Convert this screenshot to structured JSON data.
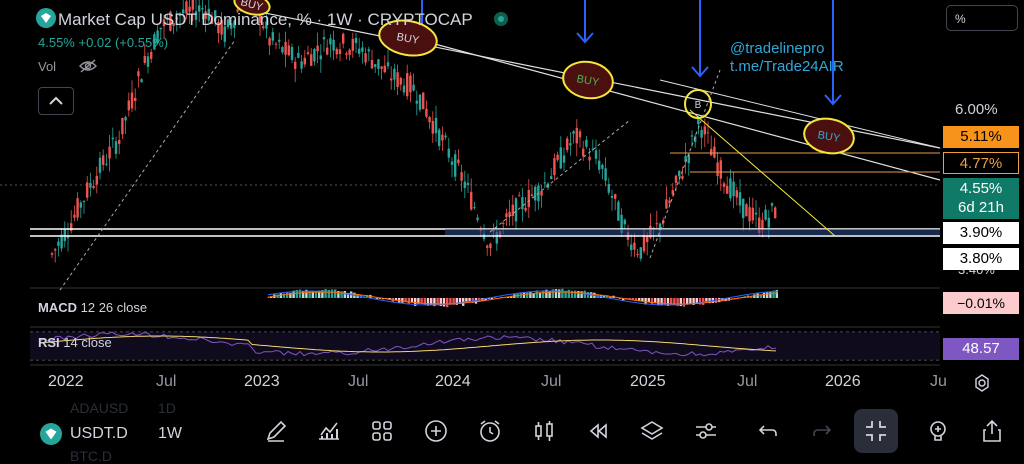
{
  "header": {
    "title": "Market Cap USDT Dominance, % · 1W · CRYPTOCAP",
    "price_line": "4.55% +0.02 (+0.55%)",
    "vol_label": "Vol"
  },
  "scale_button": "%",
  "watermark": {
    "line1": "@tradelinepro",
    "line2": "t.me/Trade24AIR"
  },
  "annotations": {
    "buy": "BUY",
    "b": "B"
  },
  "price_axis": {
    "top_label": "6.00%",
    "hidden_label": "3.40%"
  },
  "price_tags": [
    {
      "label": "5.11%",
      "bg": "#f7931a",
      "fg": "#000000"
    },
    {
      "label": "4.77%",
      "bg": "#000000",
      "fg": "#f0a040"
    },
    {
      "label": "4.55%",
      "bg": "#0f7a68",
      "fg": "#ffffff"
    },
    {
      "label": "6d 21h",
      "bg": "#0f7a68",
      "fg": "#ffffff"
    },
    {
      "label": "3.90%",
      "bg": "#ffffff",
      "fg": "#000000"
    },
    {
      "label": "3.80%",
      "bg": "#ffffff",
      "fg": "#000000"
    }
  ],
  "macd": {
    "name": "MACD",
    "params": "12 26 close",
    "value": "−0.01%",
    "value_bg": "#fccbcd",
    "value_fg": "#000000"
  },
  "rsi": {
    "name": "RSI",
    "params": "14 close",
    "value": "48.57",
    "value_bg": "#7e57c2",
    "value_fg": "#ffffff"
  },
  "time_axis": [
    "2022",
    "Jul",
    "2023",
    "Jul",
    "2024",
    "Jul",
    "2025",
    "Jul",
    "2026",
    "Ju"
  ],
  "toolbar": {
    "symbol": "USDT.D",
    "interval": "1W",
    "ghost_symbol_1": "ADAUSD",
    "ghost_interval_1": "1D",
    "ghost_symbol_2": "BTC.D",
    "icons": [
      "pencil-icon",
      "indicators-icon",
      "grid-icon",
      "add-icon",
      "alert-icon",
      "candles-icon",
      "replay-icon",
      "layers-icon",
      "settings-icon",
      "undo-icon",
      "redo-icon",
      "fullscreen-exit-icon",
      "lightbulb-icon",
      "share-icon"
    ]
  },
  "colors": {
    "up": "#26a69a",
    "down": "#ef5350",
    "channel": "#e0e0e0",
    "arrow": "#2962ff",
    "circle": "#f5e63c"
  }
}
